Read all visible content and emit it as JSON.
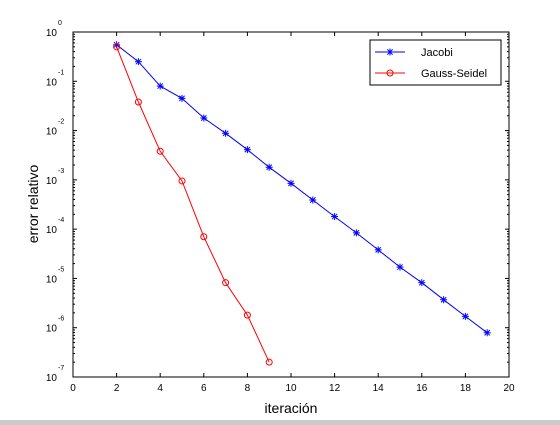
{
  "chart_data": {
    "type": "line",
    "title": "",
    "xlabel": "iteración",
    "ylabel": "error relativo",
    "xlim": [
      0,
      20
    ],
    "ylim": [
      1e-07,
      1
    ],
    "yscale": "log",
    "grid": false,
    "legend_position": "top-right",
    "x_ticks": [
      0,
      2,
      4,
      6,
      8,
      10,
      12,
      14,
      16,
      18,
      20
    ],
    "y_ticks": [
      {
        "value": 1,
        "base": "10",
        "exp": "0"
      },
      {
        "value": 0.1,
        "base": "10",
        "exp": "-1"
      },
      {
        "value": 0.01,
        "base": "10",
        "exp": "-2"
      },
      {
        "value": 0.001,
        "base": "10",
        "exp": "-3"
      },
      {
        "value": 0.0001,
        "base": "10",
        "exp": "-4"
      },
      {
        "value": 1e-05,
        "base": "10",
        "exp": "-5"
      },
      {
        "value": 1e-06,
        "base": "10",
        "exp": "-6"
      },
      {
        "value": 1e-07,
        "base": "10",
        "exp": "-7"
      }
    ],
    "series": [
      {
        "name": "Jacobi",
        "color": "#0000ff",
        "marker": "asterisk",
        "x": [
          2,
          3,
          4,
          5,
          6,
          7,
          8,
          9,
          10,
          11,
          12,
          13,
          14,
          15,
          16,
          17,
          18,
          19
        ],
        "y": [
          0.55,
          0.25,
          0.08,
          0.045,
          0.018,
          0.0088,
          0.0041,
          0.0018,
          0.00085,
          0.00039,
          0.00018,
          8.4e-05,
          3.8e-05,
          1.7e-05,
          8.2e-06,
          3.7e-06,
          1.7e-06,
          7.9e-07
        ]
      },
      {
        "name": "Gauss-Seidel",
        "color": "#ff0000",
        "marker": "circle",
        "x": [
          2,
          3,
          4,
          5,
          6,
          7,
          8,
          9
        ],
        "y": [
          0.5,
          0.038,
          0.0038,
          0.00095,
          7e-05,
          8.2e-06,
          1.8e-06,
          2e-07
        ]
      }
    ]
  }
}
